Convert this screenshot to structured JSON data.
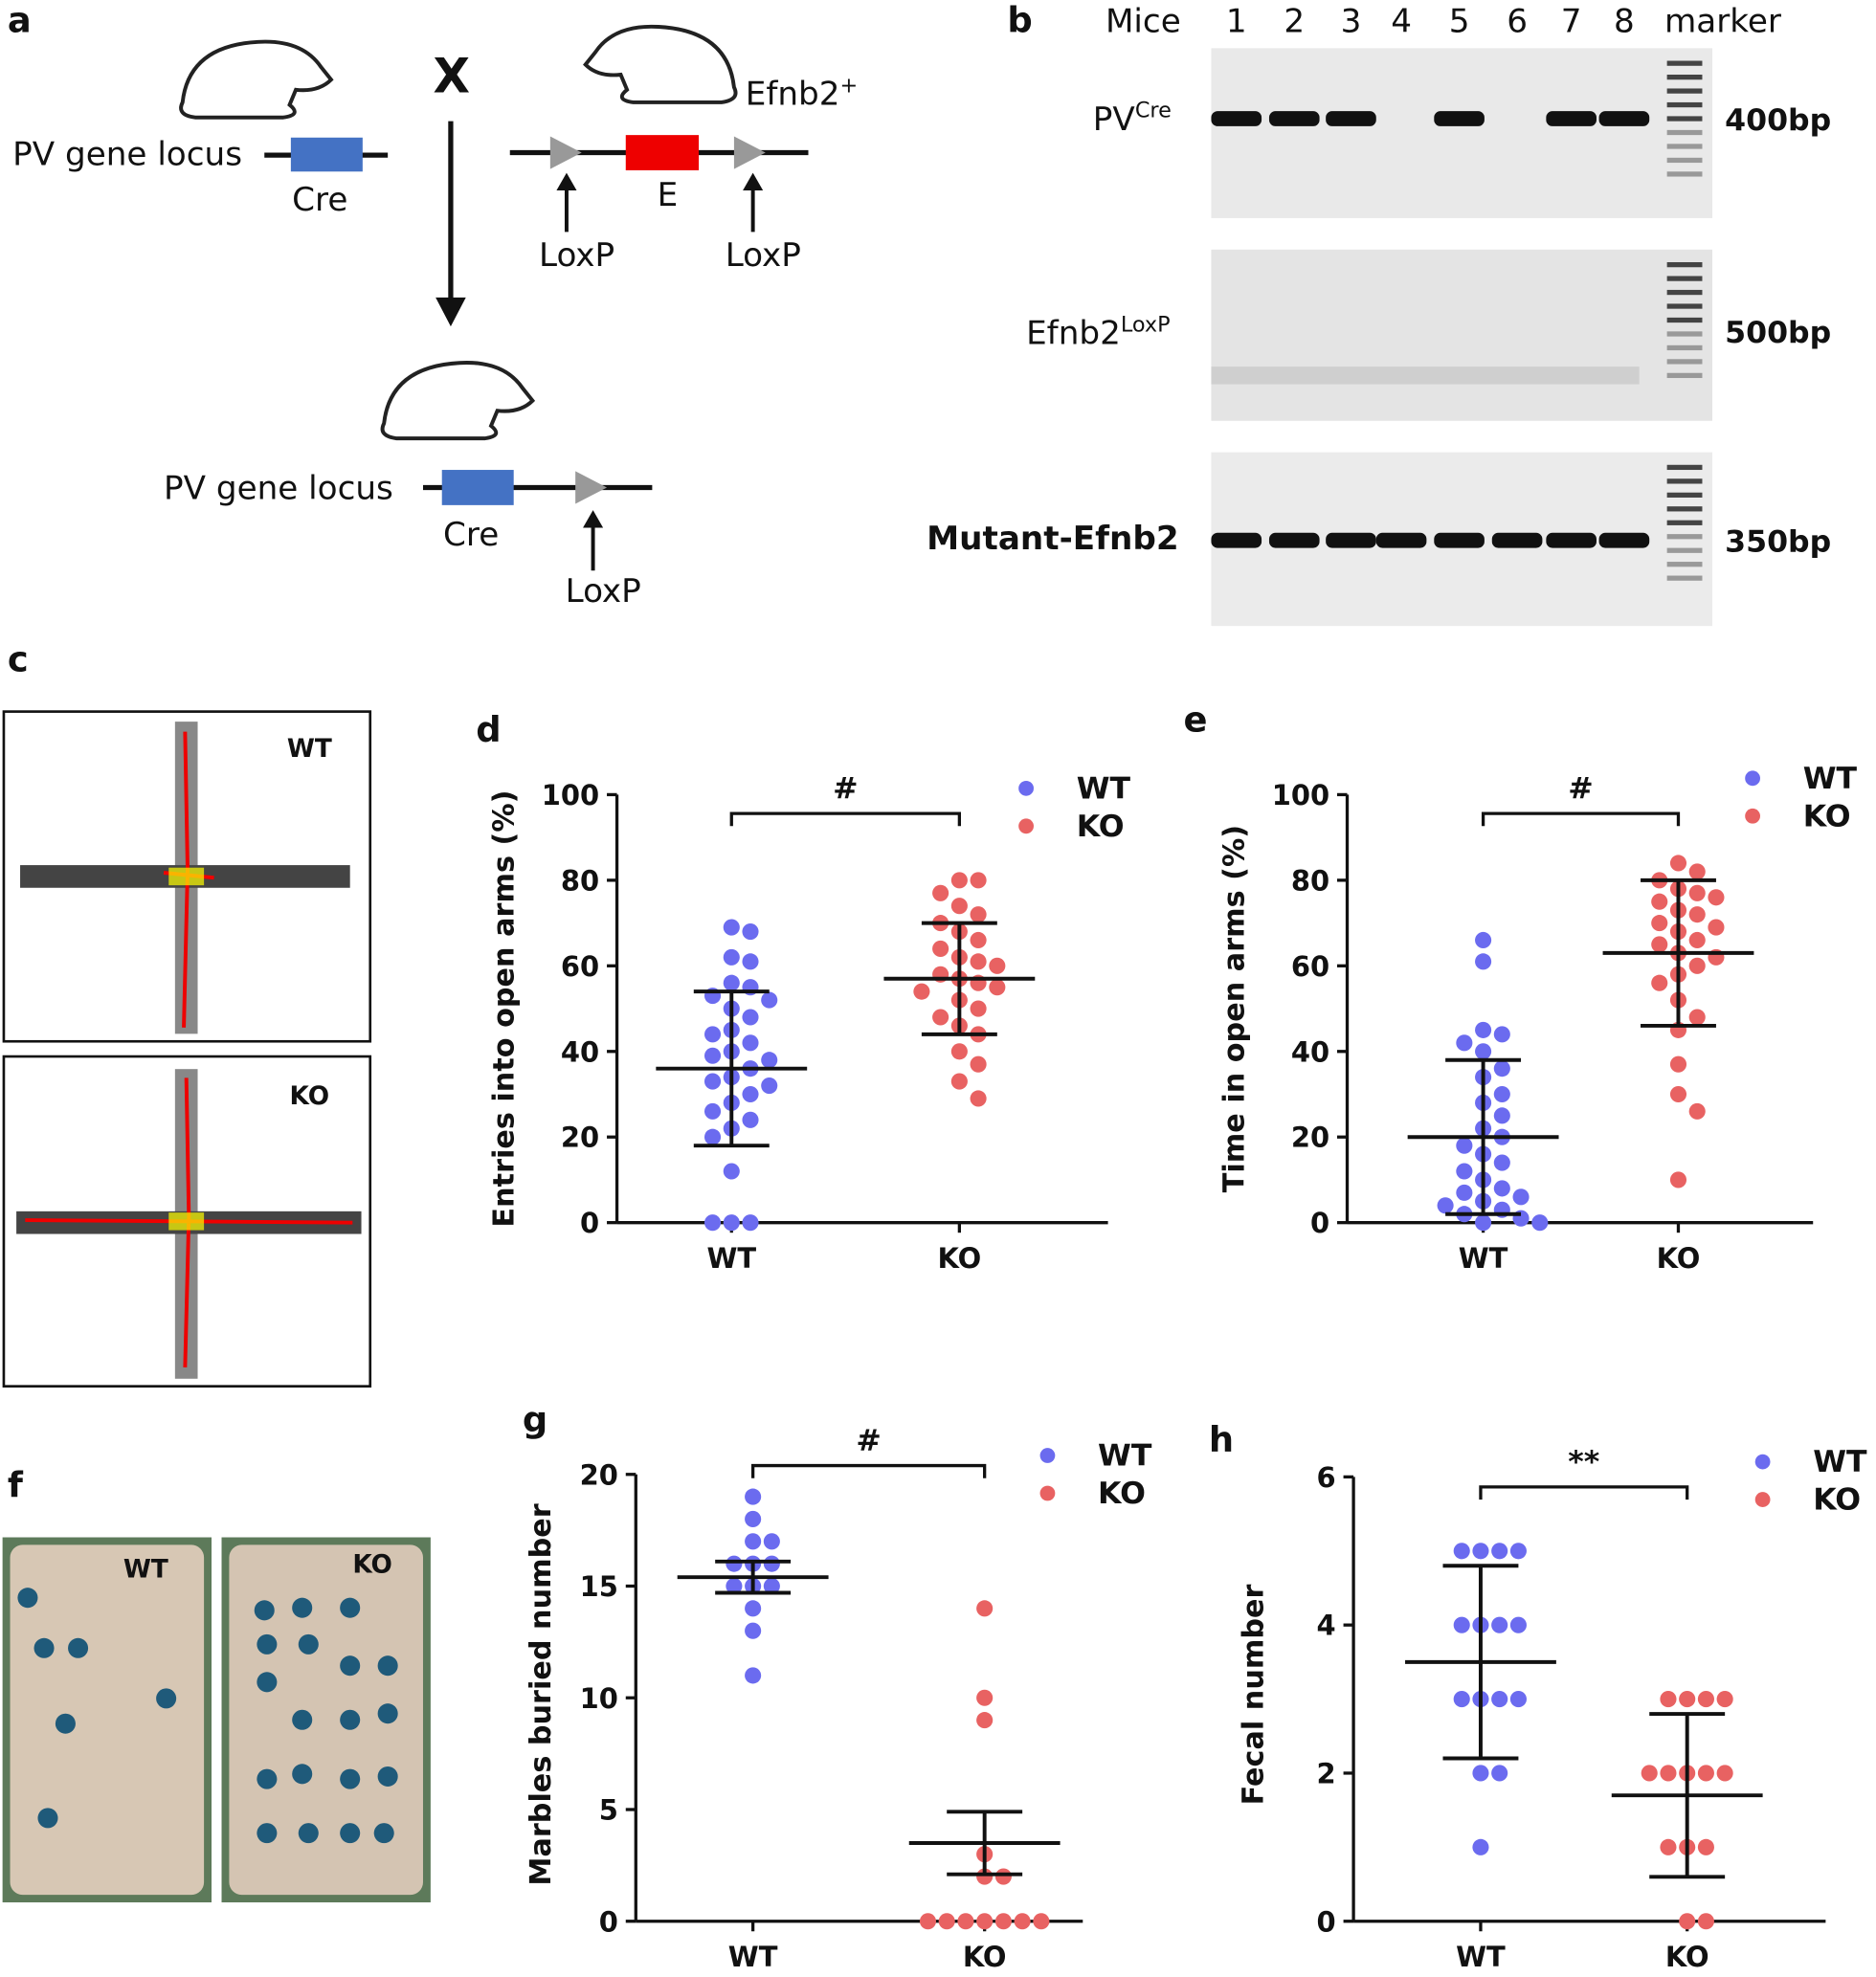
{
  "figure": {
    "a": {
      "label": "a",
      "left_locus": "PV gene locus",
      "left_gene": "Cre",
      "cross": "X",
      "right_allele": {
        "text": "Efnb2",
        "sup": "+"
      },
      "right_gene": "E",
      "loxp_left": "LoxP",
      "loxp_right": "LoxP",
      "offspring_locus": "PV gene locus",
      "offspring_gene": "Cre",
      "offspring_loxp": "LoxP"
    },
    "b": {
      "label": "b",
      "header": "Mice",
      "lanes": [
        "1",
        "2",
        "3",
        "4",
        "5",
        "6",
        "7",
        "8"
      ],
      "marker": "marker",
      "rows": [
        {
          "name": "PV",
          "sup": "Cre",
          "size": "400bp",
          "bands": [
            true,
            true,
            true,
            false,
            true,
            false,
            true,
            true
          ]
        },
        {
          "name": "Efnb2",
          "sup": "LoxP",
          "size": "500bp",
          "bands": [
            false,
            false,
            false,
            false,
            false,
            false,
            false,
            false
          ]
        },
        {
          "name": "Mutant-Efnb2",
          "size": "350bp",
          "bands": [
            true,
            true,
            true,
            true,
            true,
            true,
            true,
            true
          ]
        }
      ]
    },
    "c": {
      "label": "c",
      "top": "WT",
      "bottom": "KO"
    },
    "f": {
      "label": "f",
      "left": "WT",
      "right": "KO"
    }
  },
  "chart_data": [
    {
      "panel": "d",
      "type": "scatter",
      "annotation": "#",
      "y_label": "Entries into open arms (%)",
      "categories": [
        "WT",
        "KO"
      ],
      "ylim": [
        0,
        100
      ],
      "yticks": [
        0,
        20,
        40,
        60,
        80,
        100
      ],
      "series": [
        {
          "name": "WT",
          "color": "#6b6bef",
          "mean": 36,
          "error": 18,
          "values": [
            69,
            68,
            62,
            61,
            56,
            55,
            53,
            52,
            50,
            48,
            45,
            44,
            42,
            40,
            39,
            38,
            36,
            34,
            33,
            32,
            30,
            28,
            26,
            24,
            22,
            20,
            12,
            0,
            0,
            0
          ]
        },
        {
          "name": "KO",
          "color": "#e86262",
          "mean": 57,
          "error": 13,
          "values": [
            80,
            80,
            77,
            74,
            72,
            70,
            68,
            66,
            64,
            62,
            61,
            60,
            58,
            57,
            56,
            55,
            54,
            52,
            50,
            48,
            46,
            44,
            40,
            37,
            33,
            29
          ]
        }
      ]
    },
    {
      "panel": "e",
      "type": "scatter",
      "annotation": "#",
      "y_label": "Time in open arms (%)",
      "categories": [
        "WT",
        "KO"
      ],
      "ylim": [
        0,
        100
      ],
      "yticks": [
        0,
        20,
        40,
        60,
        80,
        100
      ],
      "series": [
        {
          "name": "WT",
          "color": "#6b6bef",
          "mean": 20,
          "error": 18,
          "values": [
            66,
            61,
            45,
            44,
            42,
            40,
            36,
            34,
            30,
            28,
            25,
            22,
            20,
            18,
            16,
            14,
            12,
            10,
            8,
            7,
            6,
            5,
            4,
            3,
            2,
            1,
            0,
            0
          ]
        },
        {
          "name": "KO",
          "color": "#e86262",
          "mean": 63,
          "error": 17,
          "values": [
            84,
            82,
            80,
            78,
            77,
            76,
            75,
            73,
            72,
            70,
            69,
            68,
            66,
            65,
            63,
            62,
            60,
            58,
            56,
            52,
            48,
            45,
            37,
            30,
            26,
            10
          ]
        }
      ]
    },
    {
      "panel": "g",
      "type": "scatter",
      "annotation": "#",
      "y_label": "Marbles buried number",
      "categories": [
        "WT",
        "KO"
      ],
      "ylim": [
        0,
        20
      ],
      "yticks": [
        0,
        5,
        10,
        15,
        20
      ],
      "series": [
        {
          "name": "WT",
          "color": "#6b6bef",
          "mean": 15.4,
          "error": 0.7,
          "values": [
            19,
            18,
            17,
            17,
            16,
            16,
            16,
            15,
            15,
            15,
            14,
            13,
            11
          ]
        },
        {
          "name": "KO",
          "color": "#e86262",
          "mean": 3.5,
          "error": 1.4,
          "values": [
            14,
            10,
            9,
            3,
            2,
            2,
            0,
            0,
            0,
            0,
            0,
            0,
            0
          ]
        }
      ]
    },
    {
      "panel": "h",
      "type": "scatter",
      "annotation": "**",
      "y_label": "Fecal number",
      "categories": [
        "WT",
        "KO"
      ],
      "ylim": [
        0,
        6
      ],
      "yticks": [
        0,
        2,
        4,
        6
      ],
      "series": [
        {
          "name": "WT",
          "color": "#6b6bef",
          "mean": 3.5,
          "error": 1.3,
          "values": [
            5,
            5,
            5,
            5,
            4,
            4,
            4,
            4,
            3,
            3,
            3,
            3,
            2,
            2,
            1
          ]
        },
        {
          "name": "KO",
          "color": "#e86262",
          "mean": 1.7,
          "error": 1.1,
          "values": [
            3,
            3,
            3,
            3,
            2,
            2,
            2,
            2,
            2,
            1,
            1,
            1,
            0,
            0
          ]
        }
      ]
    }
  ]
}
